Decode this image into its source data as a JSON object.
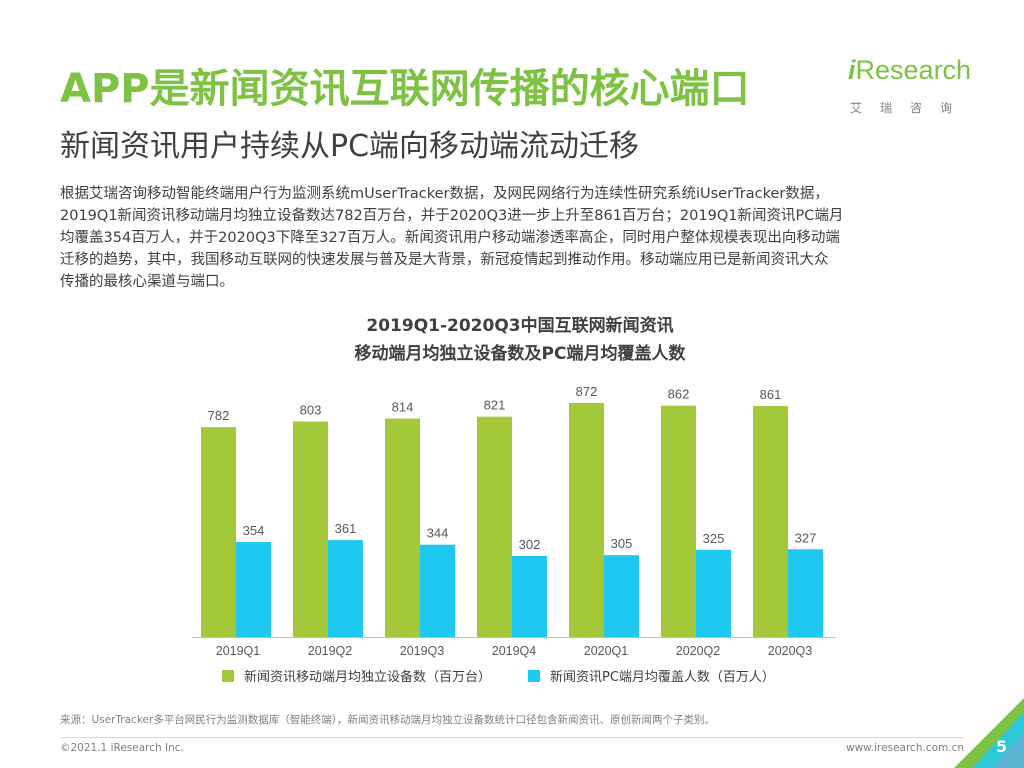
{
  "header": {
    "title": "APP是新闻资讯互联网传播的核心端口",
    "subtitle": "新闻资讯用户持续从PC端向移动端流动迁移"
  },
  "logo": {
    "i_letter": "i",
    "word": "Research",
    "sub": "艾瑞咨询"
  },
  "body_lines": [
    "根据艾瑞咨询移动智能终端用户行为监测系统mUserTracker数据，及网民网络行为连续性研究系统iUserTracker数据，",
    "2019Q1新闻资讯移动端月均独立设备数达782百万台，并于2020Q3进一步上升至861百万台；2019Q1新闻资讯PC端月",
    "均覆盖354百万人，并于2020Q3下降至327百万人。新闻资讯用户移动端渗透率高企，同时用户整体规模表现出向移动端",
    "迁移的趋势，其中，我国移动互联网的快速发展与普及是大背景，新冠疫情起到推动作用。移动端应用已是新闻资讯大众",
    "传播的最核心渠道与端口。"
  ],
  "chart_data": {
    "type": "bar",
    "title_lines": [
      "2019Q1-2020Q3中国互联网新闻资讯",
      "移动端月均独立设备数及PC端月均覆盖人数"
    ],
    "categories": [
      "2019Q1",
      "2019Q2",
      "2019Q3",
      "2019Q4",
      "2020Q1",
      "2020Q2",
      "2020Q3"
    ],
    "series": [
      {
        "name": "新闻资讯移动端月均独立设备数（百万台）",
        "color": "#a3c93a",
        "values": [
          782,
          803,
          814,
          821,
          872,
          862,
          861
        ]
      },
      {
        "name": "新闻资讯PC端月均覆盖人数（百万人）",
        "color": "#1ec8f0",
        "values": [
          354,
          361,
          344,
          302,
          305,
          325,
          327
        ]
      }
    ],
    "ylim": [
      0,
      872
    ],
    "grid": false,
    "legend": "bottom"
  },
  "footer": {
    "source": "来源：UserTracker多平台网民行为监测数据库（智能终端），新闻资讯移动端月均独立设备数统计口径包含新闻资讯、原创新闻两个子类别。",
    "copyright": "©2021.1 iResearch Inc.",
    "website": "www.iresearch.com.cn",
    "page": "5"
  },
  "colors": {
    "accent": "#7dc242",
    "text": "#404040",
    "muted": "#7f7f7f"
  }
}
